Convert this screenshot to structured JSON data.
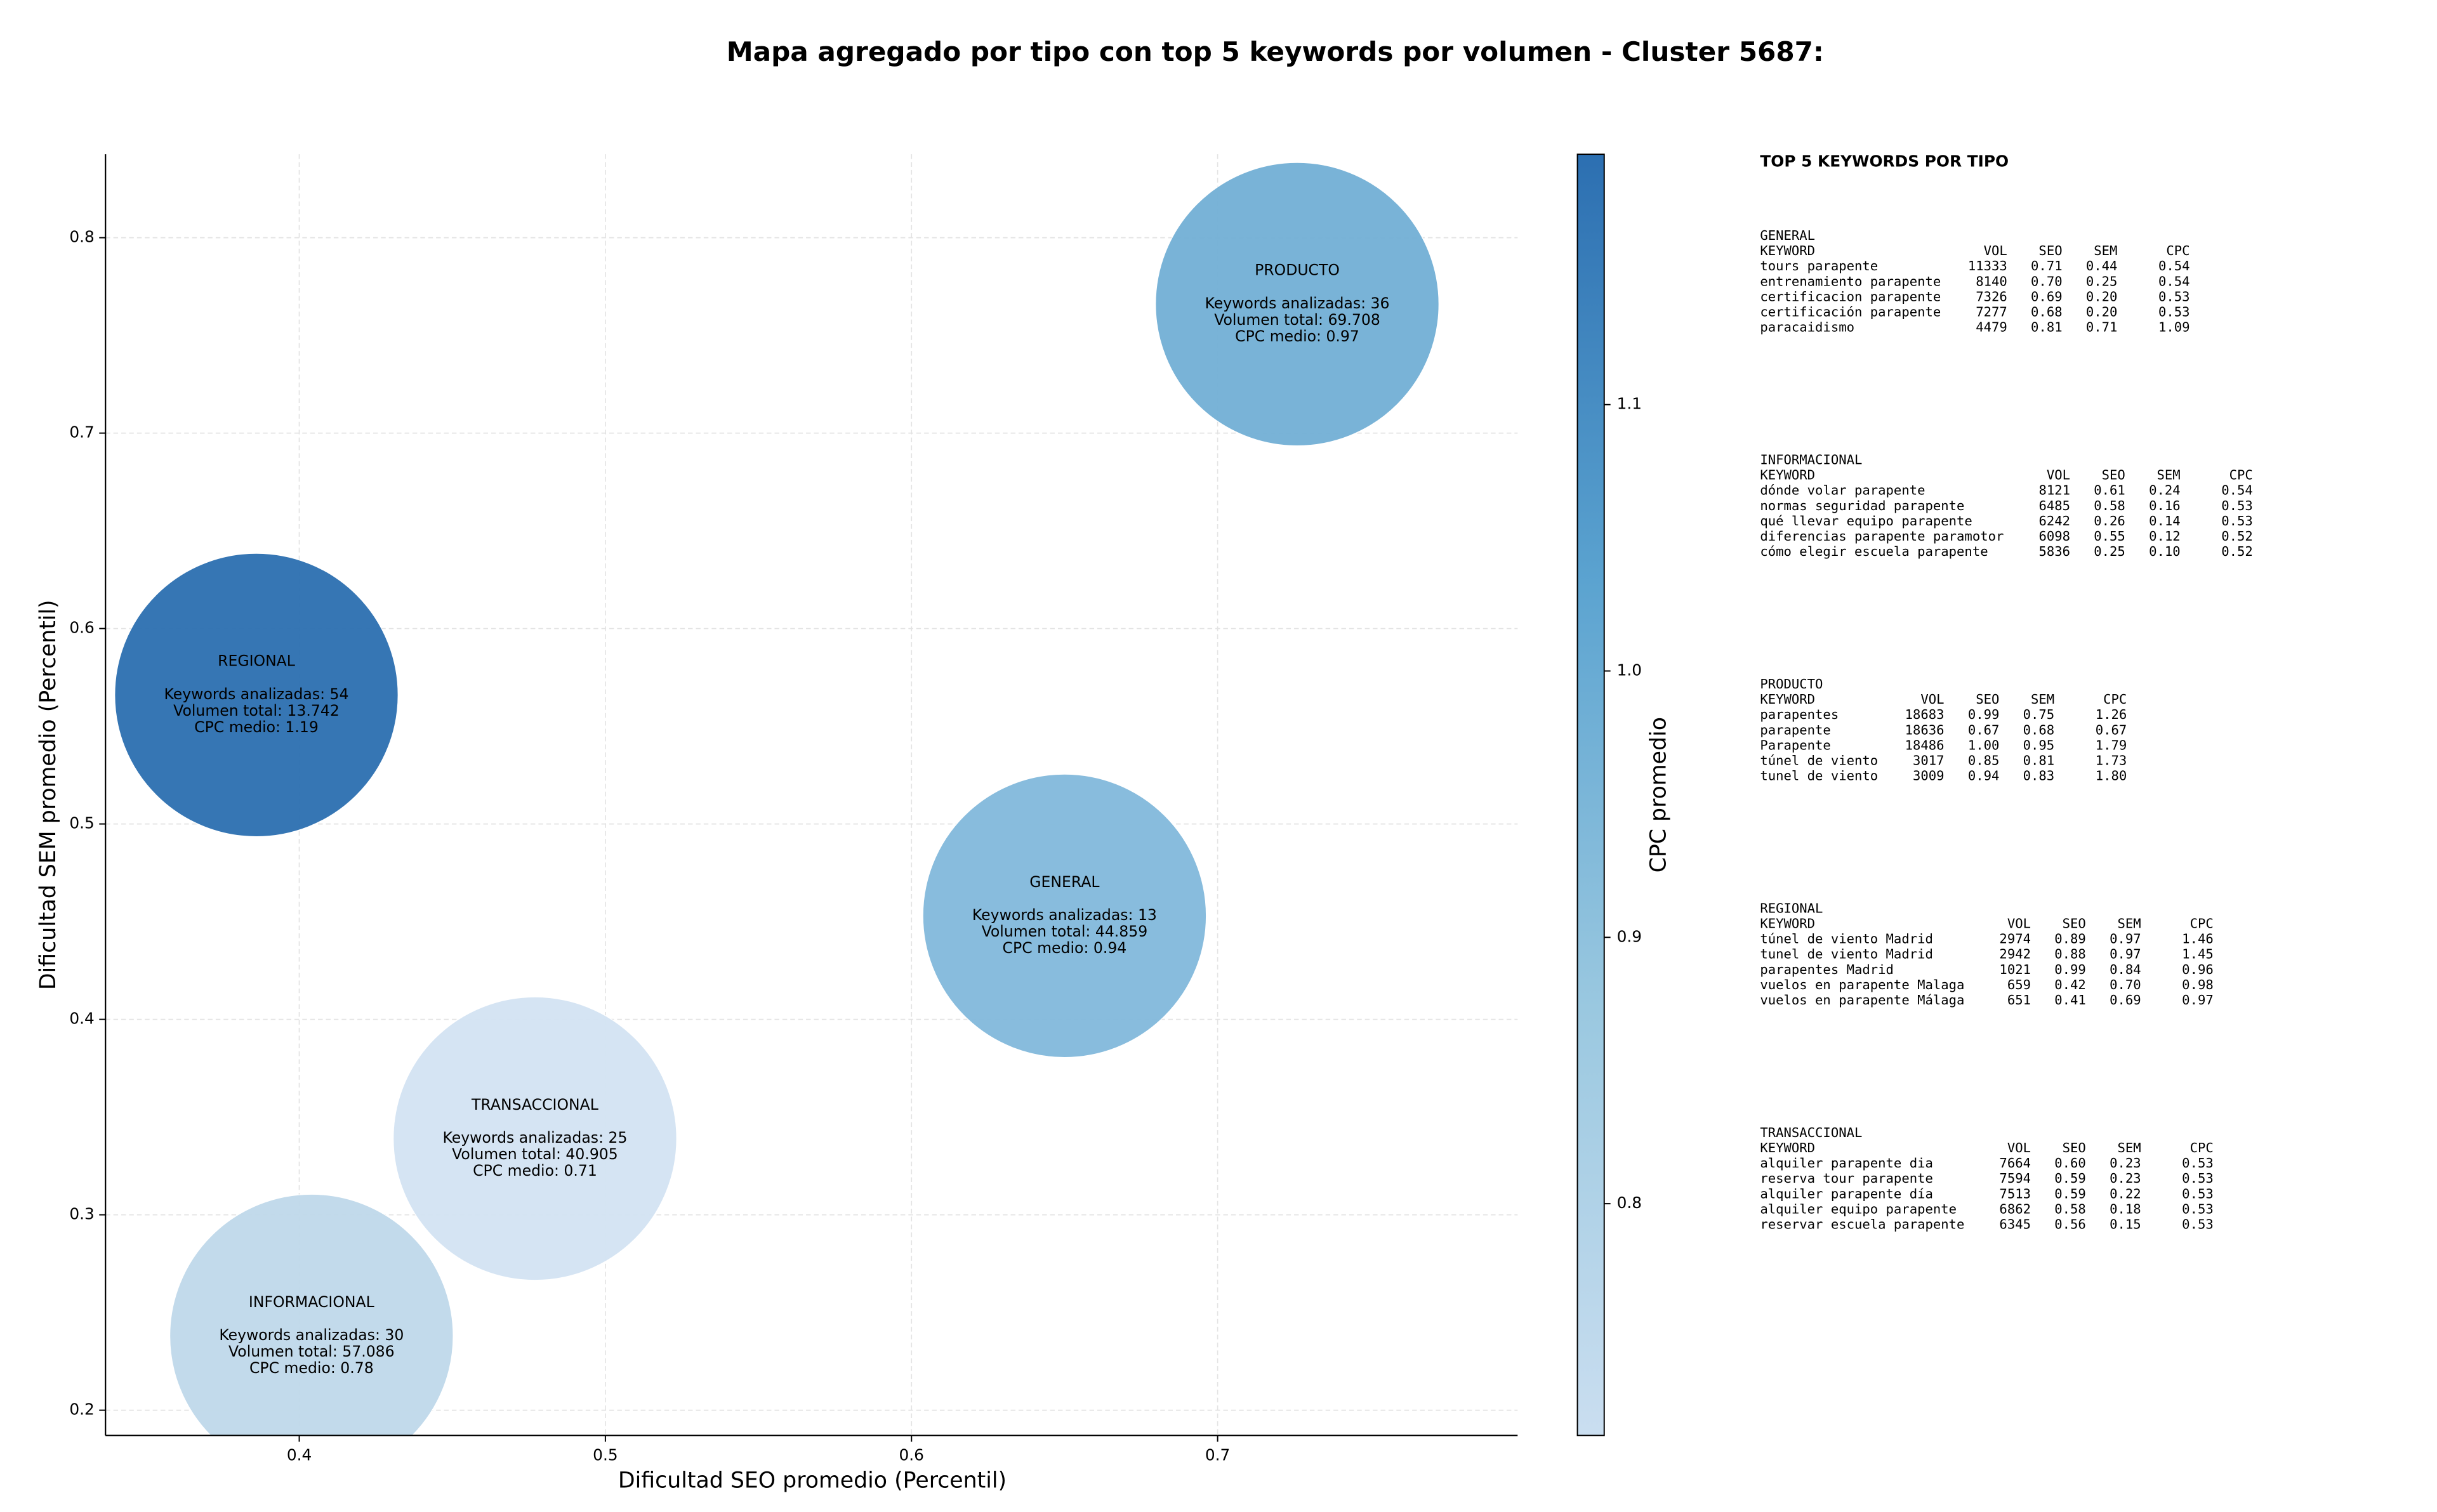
{
  "chart_data": {
    "type": "bubble",
    "title": "Mapa agregado por tipo con top 5 keywords por volumen - Cluster 5687:",
    "x_label": "Dificultad SEO promedio (Percentil)",
    "y_label": "Dificultad SEM promedio (Percentil)",
    "xlim": [
      0.3367,
      0.798
    ],
    "xticks": [
      0.4,
      0.5,
      0.6,
      0.7
    ],
    "ylim": [
      0.1871,
      0.8427
    ],
    "yticks": [
      0.2,
      0.3,
      0.4,
      0.5,
      0.6,
      0.7,
      0.8
    ],
    "grid": true,
    "series": [
      {
        "name": "PRODUCTO",
        "color": "#72afd5",
        "x": [
          0.726
        ],
        "values": [
          0.766
        ],
        "annotation": [
          "Keywords analizadas: 36",
          "Volumen total: 69.708",
          "CPC medio: 0.97"
        ]
      },
      {
        "name": "REGIONAL",
        "color": "#2b6fb0",
        "x": [
          0.386
        ],
        "values": [
          0.566
        ],
        "annotation": [
          "Keywords analizadas: 54",
          "Volumen total: 13.742",
          "CPC medio: 1.19"
        ]
      },
      {
        "name": "GENERAL",
        "color": "#82b8db",
        "x": [
          0.65
        ],
        "values": [
          0.453
        ],
        "annotation": [
          "Keywords analizadas: 13",
          "Volumen total: 44.859",
          "CPC medio: 0.94"
        ]
      },
      {
        "name": "TRANSACCIONAL",
        "color": "#d3e3f2",
        "x": [
          0.477
        ],
        "values": [
          0.339
        ],
        "annotation": [
          "Keywords analizadas: 25",
          "Volumen total: 40.905",
          "CPC medio: 0.71"
        ]
      },
      {
        "name": "INFORMACIONAL",
        "color": "#bfd8ea",
        "x": [
          0.404
        ],
        "values": [
          0.238
        ],
        "annotation": [
          "Keywords analizadas: 30",
          "Volumen total: 57.086",
          "CPC medio: 0.78"
        ]
      }
    ],
    "colorbar": {
      "label": "CPC promedio",
      "lim": [
        0.713,
        1.194
      ],
      "ticks": [
        0.8,
        0.9,
        {
          "value": 1,
          "label": "1.0"
        },
        1.1
      ],
      "colors": [
        "#cadef0",
        "#9ac8e0",
        "#5ba3d0",
        "#2c6fb1"
      ]
    }
  },
  "panel": {
    "title": "TOP 5 KEYWORDS POR TIPO",
    "columns": [
      "KEYWORD",
      "VOL",
      "SEO",
      "SEM",
      "CPC"
    ],
    "sections": [
      {
        "name": "GENERAL",
        "rows": [
          [
            "tours parapente",
            "11333",
            "0.71",
            "0.44",
            "0.54"
          ],
          [
            "entrenamiento parapente",
            "8140",
            "0.70",
            "0.25",
            "0.54"
          ],
          [
            "certificacion parapente",
            "7326",
            "0.69",
            "0.20",
            "0.53"
          ],
          [
            "certificación parapente",
            "7277",
            "0.68",
            "0.20",
            "0.53"
          ],
          [
            "paracaidismo",
            "4479",
            "0.81",
            "0.71",
            "1.09"
          ]
        ]
      },
      {
        "name": "INFORMACIONAL",
        "rows": [
          [
            "dónde volar parapente",
            "8121",
            "0.61",
            "0.24",
            "0.54"
          ],
          [
            "normas seguridad parapente",
            "6485",
            "0.58",
            "0.16",
            "0.53"
          ],
          [
            "qué llevar equipo parapente",
            "6242",
            "0.26",
            "0.14",
            "0.53"
          ],
          [
            "diferencias parapente paramotor",
            "6098",
            "0.55",
            "0.12",
            "0.52"
          ],
          [
            "cómo elegir escuela parapente",
            "5836",
            "0.25",
            "0.10",
            "0.52"
          ]
        ]
      },
      {
        "name": "PRODUCTO",
        "rows": [
          [
            "parapentes",
            "18683",
            "0.99",
            "0.75",
            "1.26"
          ],
          [
            "parapente",
            "18636",
            "0.67",
            "0.68",
            "0.67"
          ],
          [
            "Parapente",
            "18486",
            "1.00",
            "0.95",
            "1.79"
          ],
          [
            "túnel de viento",
            "3017",
            "0.85",
            "0.81",
            "1.73"
          ],
          [
            "tunel de viento",
            "3009",
            "0.94",
            "0.83",
            "1.80"
          ]
        ]
      },
      {
        "name": "REGIONAL",
        "rows": [
          [
            "túnel de viento Madrid",
            "2974",
            "0.89",
            "0.97",
            "1.46"
          ],
          [
            "tunel de viento Madrid",
            "2942",
            "0.88",
            "0.97",
            "1.45"
          ],
          [
            "parapentes Madrid",
            "1021",
            "0.99",
            "0.84",
            "0.96"
          ],
          [
            "vuelos en parapente Malaga",
            "659",
            "0.42",
            "0.70",
            "0.98"
          ],
          [
            "vuelos en parapente Málaga",
            "651",
            "0.41",
            "0.69",
            "0.97"
          ]
        ]
      },
      {
        "name": "TRANSACCIONAL",
        "rows": [
          [
            "alquiler parapente dia",
            "7664",
            "0.60",
            "0.23",
            "0.53"
          ],
          [
            "reserva tour parapente",
            "7594",
            "0.59",
            "0.23",
            "0.53"
          ],
          [
            "alquiler parapente día",
            "7513",
            "0.59",
            "0.22",
            "0.53"
          ],
          [
            "alquiler equipo parapente",
            "6862",
            "0.58",
            "0.18",
            "0.53"
          ],
          [
            "reservar escuela parapente",
            "6345",
            "0.56",
            "0.15",
            "0.53"
          ]
        ]
      }
    ]
  }
}
